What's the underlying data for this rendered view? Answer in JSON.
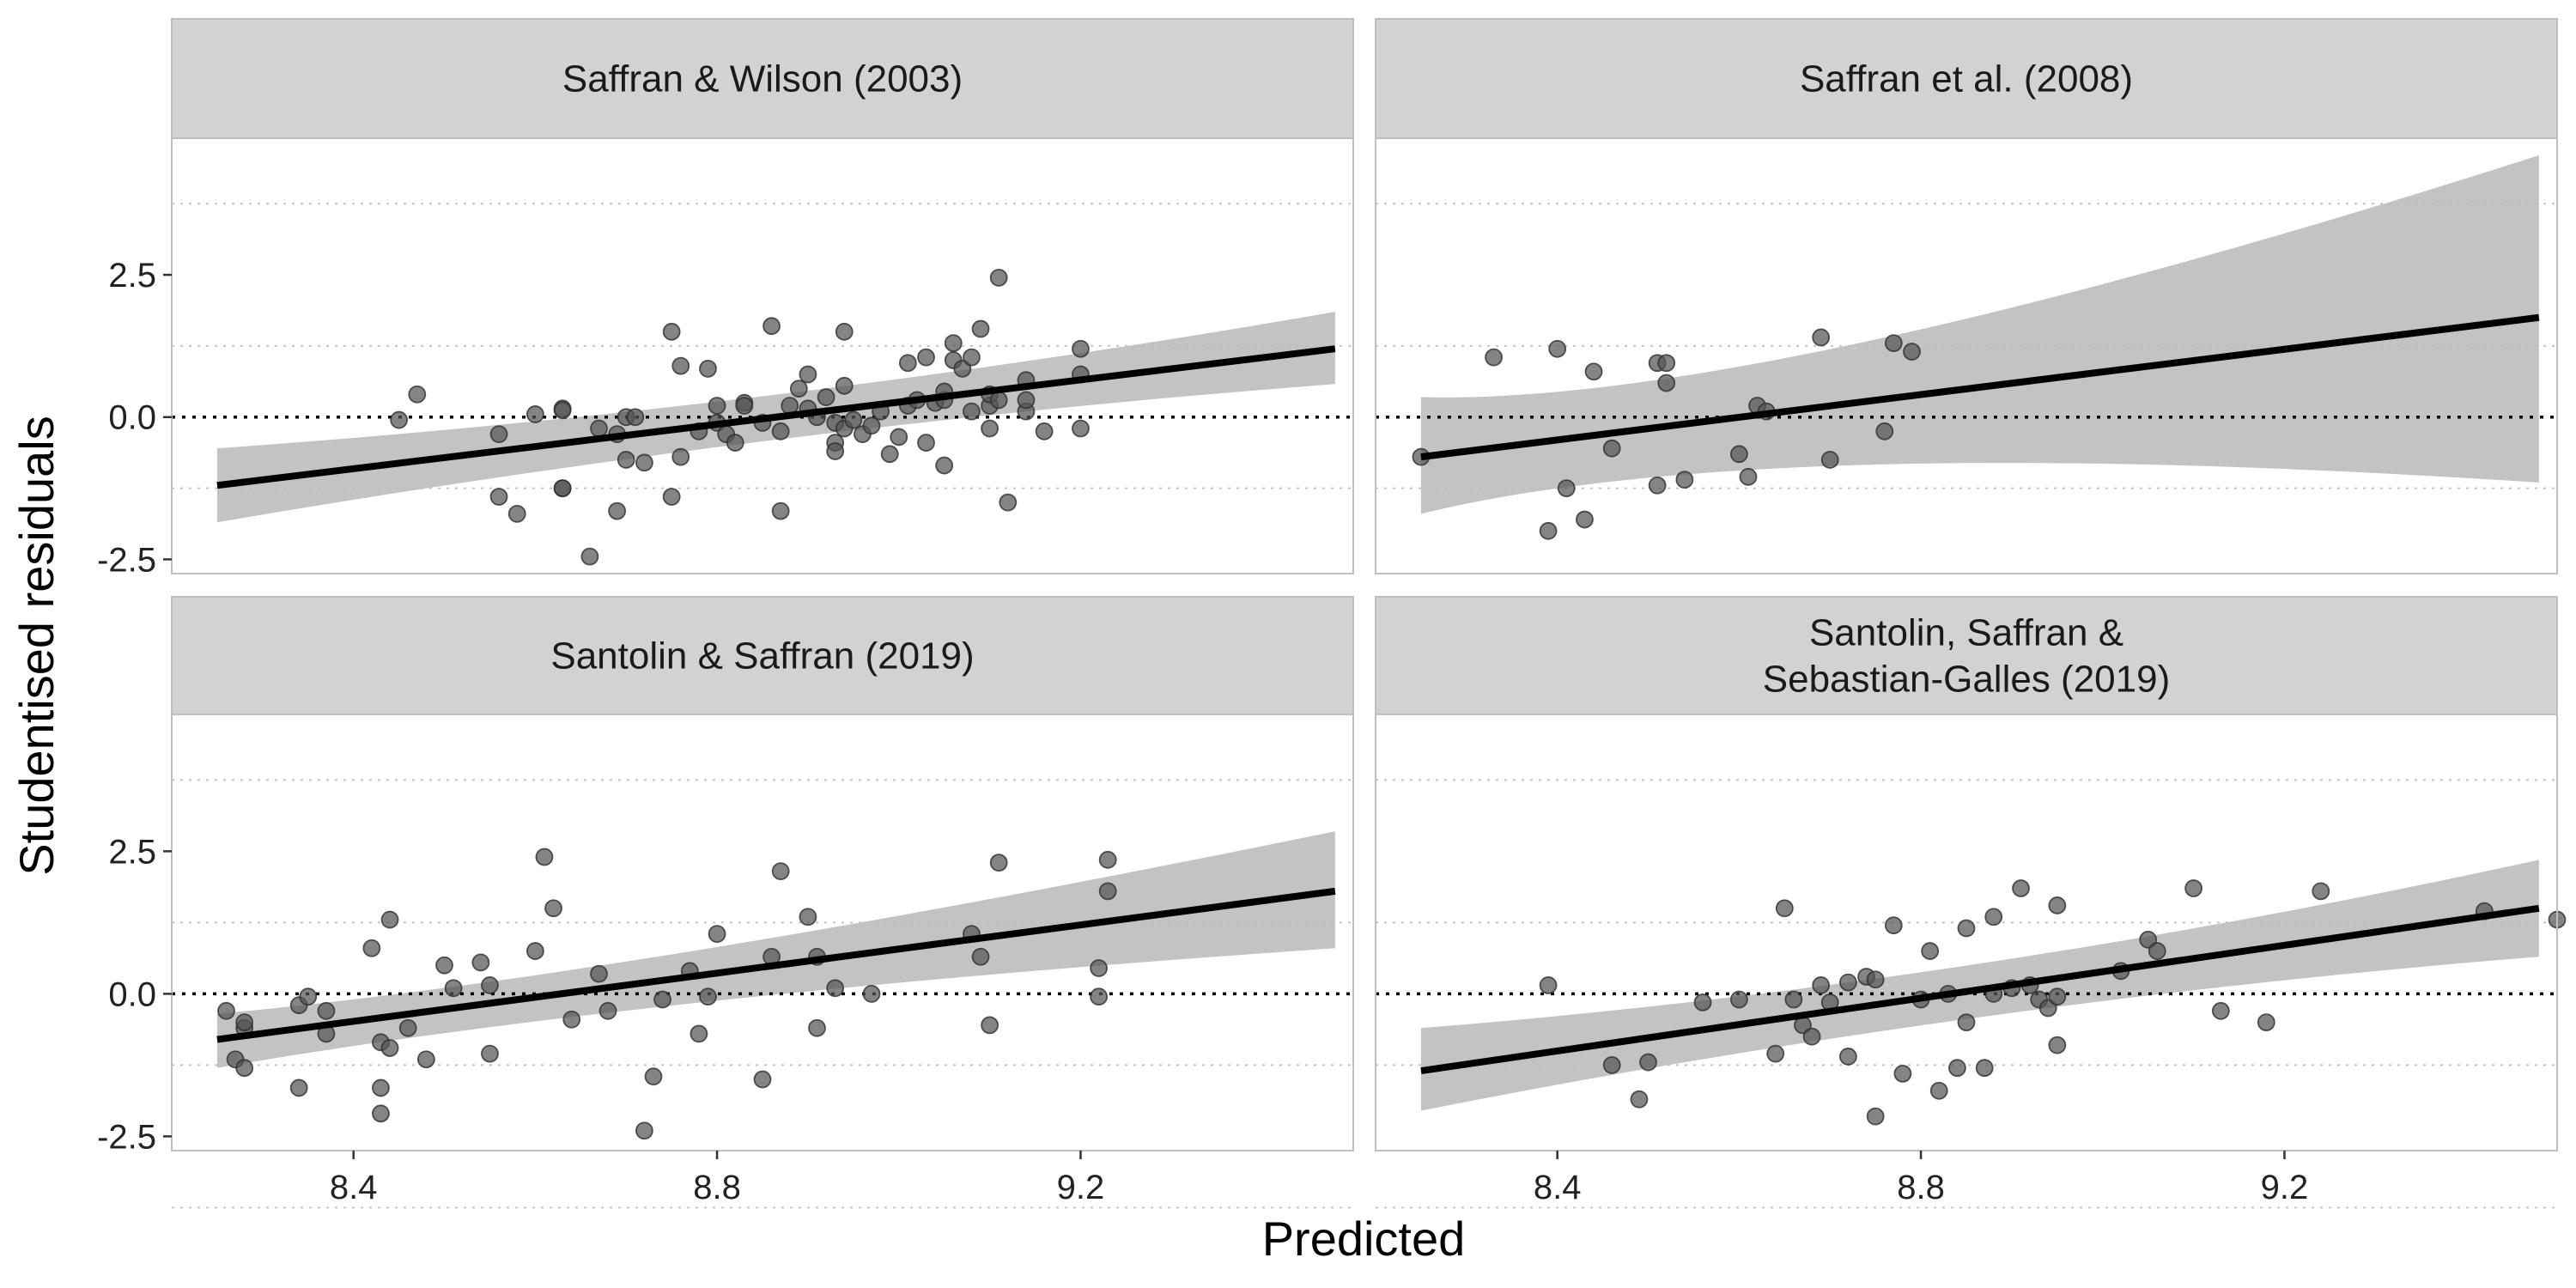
{
  "chart_data": {
    "type": "scatter",
    "xlabel": "Predicted",
    "ylabel": "Studentised residuals",
    "xlim": [
      8.2,
      9.5
    ],
    "ylim": [
      -2.75,
      4.9
    ],
    "x_ticks": [
      8.4,
      8.8,
      9.2
    ],
    "x_tick_labels": [
      "8.4",
      "8.8",
      "9.2"
    ],
    "y_ticks": [
      -2.5,
      0,
      2.5
    ],
    "y_tick_labels": [
      "-2.5",
      "0.0",
      "2.5"
    ],
    "reference_line_y": 0,
    "grid": "dotted horizontal lines at +/-1.25 and +/-3.75",
    "colors": {
      "points": "#555555",
      "fit_line": "#000000",
      "ribbon": "#bdbdbd",
      "strip": "#d2d2d2",
      "panel_border": "#bfbfbf"
    },
    "panels": [
      {
        "title_lines": [
          "Saffran & Wilson (2003)"
        ],
        "fit": {
          "x": [
            8.25,
            9.48
          ],
          "y": [
            -1.2,
            1.2
          ],
          "ci_low": [
            -1.85,
            0.58
          ],
          "ci_high": [
            -0.55,
            1.85
          ],
          "ci_mid_x": 8.87,
          "ci_mid_low": -0.15,
          "ci_mid_high": 0.15
        },
        "points": [
          [
            8.45,
            -0.05
          ],
          [
            8.47,
            0.4
          ],
          [
            8.56,
            -0.3
          ],
          [
            8.56,
            -1.4
          ],
          [
            8.58,
            -1.7
          ],
          [
            8.6,
            0.05
          ],
          [
            8.63,
            0.15
          ],
          [
            8.63,
            0.12
          ],
          [
            8.63,
            -1.25
          ],
          [
            8.63,
            -1.25
          ],
          [
            8.66,
            -2.45
          ],
          [
            8.67,
            -0.2
          ],
          [
            8.69,
            -0.3
          ],
          [
            8.69,
            -1.65
          ],
          [
            8.7,
            0
          ],
          [
            8.71,
            0
          ],
          [
            8.72,
            -0.8
          ],
          [
            8.7,
            -0.75
          ],
          [
            8.75,
            -1.4
          ],
          [
            8.75,
            1.5
          ],
          [
            8.76,
            0.9
          ],
          [
            8.76,
            -0.7
          ],
          [
            8.78,
            -0.25
          ],
          [
            8.79,
            0.85
          ],
          [
            8.8,
            0.2
          ],
          [
            8.8,
            -0.1
          ],
          [
            8.81,
            -0.3
          ],
          [
            8.82,
            -0.45
          ],
          [
            8.83,
            0.25
          ],
          [
            8.83,
            0.2
          ],
          [
            8.85,
            -0.1
          ],
          [
            8.86,
            1.6
          ],
          [
            8.87,
            -0.25
          ],
          [
            8.87,
            -1.65
          ],
          [
            8.88,
            0.2
          ],
          [
            8.89,
            0.5
          ],
          [
            8.9,
            0.75
          ],
          [
            8.9,
            0.15
          ],
          [
            8.91,
            0
          ],
          [
            8.92,
            0.35
          ],
          [
            8.93,
            -0.1
          ],
          [
            8.93,
            -0.45
          ],
          [
            8.93,
            -0.6
          ],
          [
            8.94,
            0.55
          ],
          [
            8.94,
            -0.2
          ],
          [
            8.94,
            1.5
          ],
          [
            8.95,
            -0.05
          ],
          [
            8.96,
            -0.3
          ],
          [
            8.97,
            -0.15
          ],
          [
            8.98,
            0.1
          ],
          [
            8.99,
            -0.65
          ],
          [
            9,
            -0.35
          ],
          [
            9.01,
            0.2
          ],
          [
            9.01,
            0.95
          ],
          [
            9.02,
            0.3
          ],
          [
            9.03,
            1.05
          ],
          [
            9.03,
            -0.45
          ],
          [
            9.04,
            0.25
          ],
          [
            9.05,
            0.3
          ],
          [
            9.05,
            0.45
          ],
          [
            9.05,
            -0.85
          ],
          [
            9.06,
            1.3
          ],
          [
            9.06,
            1.0
          ],
          [
            9.07,
            0.85
          ],
          [
            9.08,
            0.1
          ],
          [
            9.08,
            1.05
          ],
          [
            9.09,
            1.55
          ],
          [
            9.1,
            0.2
          ],
          [
            9.1,
            0.4
          ],
          [
            9.1,
            -0.2
          ],
          [
            9.11,
            2.45
          ],
          [
            9.11,
            0.3
          ],
          [
            9.12,
            -1.5
          ],
          [
            9.14,
            0.65
          ],
          [
            9.14,
            0.1
          ],
          [
            9.14,
            0.3
          ],
          [
            9.16,
            -0.25
          ],
          [
            9.2,
            1.2
          ],
          [
            9.2,
            0.75
          ],
          [
            9.2,
            -0.2
          ]
        ]
      },
      {
        "title_lines": [
          "Saffran et al. (2008)"
        ],
        "fit": {
          "x": [
            8.25,
            9.48
          ],
          "y": [
            -0.7,
            1.75
          ],
          "ci_low": [
            -1.7,
            -1.15
          ],
          "ci_high": [
            0.35,
            4.6
          ],
          "ci_mid_x": 8.62,
          "ci_mid_low": -0.25,
          "ci_mid_high": 0.2
        },
        "points": [
          [
            8.25,
            -0.7
          ],
          [
            8.33,
            1.05
          ],
          [
            8.39,
            -2
          ],
          [
            8.4,
            1.2
          ],
          [
            8.41,
            -1.25
          ],
          [
            8.43,
            -1.8
          ],
          [
            8.44,
            0.8
          ],
          [
            8.46,
            -0.55
          ],
          [
            8.51,
            -1.2
          ],
          [
            8.51,
            0.95
          ],
          [
            8.52,
            0.6
          ],
          [
            8.52,
            0.95
          ],
          [
            8.54,
            -1.1
          ],
          [
            8.6,
            -0.65
          ],
          [
            8.61,
            -1.05
          ],
          [
            8.62,
            0.2
          ],
          [
            8.63,
            0.1
          ],
          [
            8.69,
            1.4
          ],
          [
            8.7,
            -0.75
          ],
          [
            8.76,
            -0.25
          ],
          [
            8.77,
            1.3
          ],
          [
            8.79,
            1.15
          ]
        ]
      },
      {
        "title_lines": [
          "Santolin & Saffran (2019)"
        ],
        "fit": {
          "x": [
            8.25,
            9.48
          ],
          "y": [
            -0.8,
            1.8
          ],
          "ci_low": [
            -1.3,
            0.8
          ],
          "ci_high": [
            -0.35,
            2.85
          ],
          "ci_mid_x": 8.7,
          "ci_mid_low": -0.05,
          "ci_mid_high": 0.3
        },
        "points": [
          [
            8.26,
            -0.3
          ],
          [
            8.27,
            -1.15
          ],
          [
            8.28,
            -1.3
          ],
          [
            8.28,
            -0.6
          ],
          [
            8.28,
            -0.5
          ],
          [
            8.34,
            -0.2
          ],
          [
            8.34,
            -1.65
          ],
          [
            8.35,
            -0.05
          ],
          [
            8.37,
            -0.3
          ],
          [
            8.37,
            -0.7
          ],
          [
            8.42,
            0.8
          ],
          [
            8.43,
            -0.85
          ],
          [
            8.43,
            -1.65
          ],
          [
            8.43,
            -2.1
          ],
          [
            8.44,
            1.3
          ],
          [
            8.44,
            -0.95
          ],
          [
            8.46,
            -0.6
          ],
          [
            8.48,
            -1.15
          ],
          [
            8.5,
            0.5
          ],
          [
            8.51,
            0.1
          ],
          [
            8.54,
            0.55
          ],
          [
            8.55,
            0.15
          ],
          [
            8.55,
            -1.05
          ],
          [
            8.6,
            0.75
          ],
          [
            8.61,
            2.4
          ],
          [
            8.62,
            1.5
          ],
          [
            8.64,
            -0.45
          ],
          [
            8.67,
            0.35
          ],
          [
            8.68,
            -0.3
          ],
          [
            8.72,
            -2.4
          ],
          [
            8.73,
            -1.45
          ],
          [
            8.74,
            -0.1
          ],
          [
            8.77,
            0.4
          ],
          [
            8.78,
            -0.7
          ],
          [
            8.79,
            -0.05
          ],
          [
            8.8,
            1.05
          ],
          [
            8.85,
            -1.5
          ],
          [
            8.86,
            0.65
          ],
          [
            8.87,
            2.15
          ],
          [
            8.9,
            1.35
          ],
          [
            8.91,
            -0.6
          ],
          [
            8.91,
            0.65
          ],
          [
            8.93,
            0.1
          ],
          [
            8.97,
            0
          ],
          [
            9.08,
            1.05
          ],
          [
            9.09,
            0.65
          ],
          [
            9.1,
            -0.55
          ],
          [
            9.11,
            2.3
          ],
          [
            9.22,
            0.45
          ],
          [
            9.22,
            -0.05
          ],
          [
            9.23,
            2.35
          ],
          [
            9.23,
            1.8
          ]
        ]
      },
      {
        "title_lines": [
          "Santolin, Saffran &",
          "Sebastian-Galles (2019)"
        ],
        "fit": {
          "x": [
            8.25,
            9.48
          ],
          "y": [
            -1.35,
            1.5
          ],
          "ci_low": [
            -2.05,
            0.65
          ],
          "ci_high": [
            -0.6,
            2.35
          ],
          "ci_mid_x": 8.85,
          "ci_mid_low": -0.15,
          "ci_mid_high": 0.15
        },
        "points": [
          [
            8.39,
            0.15
          ],
          [
            8.46,
            -1.25
          ],
          [
            8.49,
            -1.85
          ],
          [
            8.5,
            -1.2
          ],
          [
            8.56,
            -0.15
          ],
          [
            8.6,
            -0.1
          ],
          [
            8.64,
            -1.05
          ],
          [
            8.65,
            1.5
          ],
          [
            8.66,
            -0.1
          ],
          [
            8.67,
            -0.55
          ],
          [
            8.68,
            -0.75
          ],
          [
            8.69,
            0.15
          ],
          [
            8.7,
            -0.15
          ],
          [
            8.72,
            -1.1
          ],
          [
            8.72,
            0.2
          ],
          [
            8.74,
            0.3
          ],
          [
            8.75,
            0.25
          ],
          [
            8.75,
            -2.15
          ],
          [
            8.77,
            1.2
          ],
          [
            8.78,
            -1.4
          ],
          [
            8.8,
            -0.1
          ],
          [
            8.81,
            0.75
          ],
          [
            8.82,
            -1.7
          ],
          [
            8.83,
            0
          ],
          [
            8.84,
            -1.3
          ],
          [
            8.85,
            -0.5
          ],
          [
            8.85,
            1.15
          ],
          [
            8.87,
            -1.3
          ],
          [
            8.88,
            0
          ],
          [
            8.88,
            1.35
          ],
          [
            8.9,
            0.1
          ],
          [
            8.91,
            1.85
          ],
          [
            8.92,
            0.15
          ],
          [
            8.93,
            -0.1
          ],
          [
            8.94,
            -0.25
          ],
          [
            8.95,
            1.55
          ],
          [
            8.95,
            -0.9
          ],
          [
            8.95,
            -0.05
          ],
          [
            9.02,
            0.4
          ],
          [
            9.05,
            0.95
          ],
          [
            9.06,
            0.75
          ],
          [
            9.1,
            1.85
          ],
          [
            9.13,
            -0.3
          ],
          [
            9.18,
            -0.5
          ],
          [
            9.24,
            1.8
          ],
          [
            9.42,
            1.45
          ],
          [
            9.5,
            1.3
          ]
        ]
      }
    ]
  }
}
